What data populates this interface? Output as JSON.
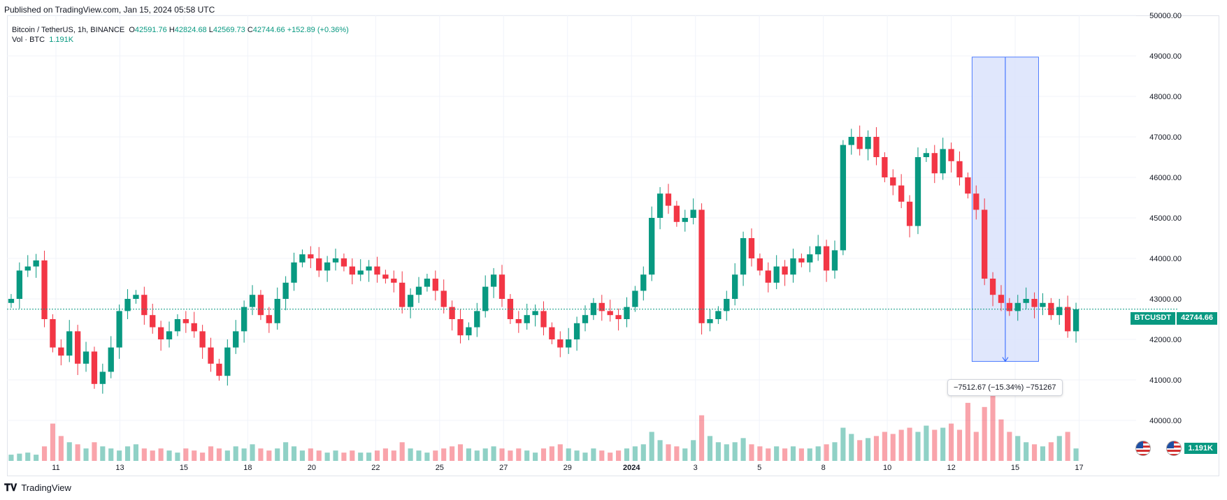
{
  "header": {
    "published": "Published on TradingView.com, Jan 15, 2024 05:58 UTC"
  },
  "legend": {
    "symbol": "Bitcoin / TetherUS, 1h, BINANCE",
    "open_label": "O",
    "open": "42591.76",
    "high_label": "H",
    "high": "42824.68",
    "low_label": "L",
    "low": "42569.73",
    "close_label": "C",
    "close": "42744.66",
    "change": "+152.89 (+0.36%)"
  },
  "volume_legend": {
    "label": "Vol · BTC",
    "value": "1.191K"
  },
  "price_tag": {
    "symbol": "BTCUSDT",
    "price": "42744.66"
  },
  "volume_tag": "1.191K",
  "measure": {
    "text": "−7512.67 (−15.34%) −751267"
  },
  "footer": {
    "brand": "TradingView"
  },
  "colors": {
    "up": "#089981",
    "down": "#f23645",
    "measure_fill": "#dbe3fb",
    "measure_line": "#2962ff",
    "grid": "#f0f3fa"
  },
  "chart_data": {
    "type": "candlestick",
    "ylim": [
      39000,
      50000
    ],
    "y_ticks": [
      "40000.00",
      "41000.00",
      "42000.00",
      "43000.00",
      "44000.00",
      "45000.00",
      "46000.00",
      "47000.00",
      "48000.00",
      "49000.00",
      "50000.00"
    ],
    "x_ticks": [
      "11",
      "13",
      "15",
      "18",
      "20",
      "22",
      "25",
      "27",
      "29",
      "2024",
      "3",
      "5",
      "8",
      "10",
      "12",
      "15",
      "17"
    ],
    "last_price": 42744.66,
    "series": [
      {
        "name": "Bitcoin / TetherUS",
        "values": [
          43000,
          43700,
          43800,
          43950,
          42500,
          41800,
          41600,
          42200,
          41400,
          41700,
          40900,
          41200,
          41800,
          42700,
          43000,
          43100,
          42600,
          42300,
          42000,
          42200,
          42500,
          42400,
          42200,
          41800,
          41400,
          41100,
          41800,
          42200,
          42800,
          43100,
          42600,
          42400,
          43000,
          43400,
          43900,
          44100,
          44000,
          43700,
          43900,
          44000,
          43800,
          43600,
          43700,
          43800,
          43600,
          43500,
          43400,
          42800,
          43100,
          43300,
          43500,
          43200,
          42800,
          42500,
          42100,
          42300,
          42700,
          43300,
          43600,
          43000,
          42500,
          42400,
          42600,
          42700,
          42300,
          42000,
          41800,
          42000,
          42400,
          42600,
          42900,
          42700,
          42600,
          42500,
          42800,
          43200,
          43600,
          45000,
          45600,
          45300,
          44900,
          45000,
          45200,
          42400,
          42500,
          42700,
          43000,
          43600,
          44500,
          44000,
          43700,
          43400,
          43800,
          43600,
          44000,
          43900,
          44100,
          44300,
          43700,
          44200,
          46800,
          47000,
          46700,
          47000,
          46500,
          46000,
          45800,
          45400,
          44800,
          46500,
          46600,
          46100,
          46700,
          46400,
          46000,
          45600,
          45200,
          43500,
          43100,
          42900,
          42700,
          42900,
          43000,
          42800,
          42900,
          42600,
          42800,
          42200,
          42744.66
        ]
      }
    ],
    "volumes": [
      0.3,
      0.35,
      0.4,
      0.3,
      0.7,
      1.8,
      1.2,
      0.9,
      0.8,
      0.6,
      0.9,
      0.7,
      0.6,
      0.5,
      0.7,
      0.8,
      0.6,
      0.5,
      0.6,
      0.5,
      0.4,
      0.6,
      0.5,
      0.4,
      0.7,
      0.6,
      0.5,
      0.7,
      0.6,
      0.8,
      0.6,
      0.5,
      0.6,
      0.9,
      0.7,
      0.5,
      0.6,
      0.5,
      0.4,
      0.5,
      0.4,
      0.5,
      0.4,
      0.4,
      0.5,
      0.6,
      0.5,
      0.9,
      0.6,
      0.5,
      0.4,
      0.5,
      0.6,
      0.7,
      0.8,
      0.6,
      0.5,
      0.6,
      0.7,
      0.6,
      0.5,
      0.6,
      0.5,
      0.4,
      0.6,
      0.7,
      0.8,
      0.6,
      0.5,
      0.4,
      0.6,
      0.5,
      0.4,
      0.5,
      0.6,
      0.7,
      0.8,
      1.4,
      1.0,
      0.8,
      0.7,
      0.6,
      1.0,
      2.2,
      1.2,
      0.9,
      0.8,
      0.9,
      1.1,
      0.8,
      0.7,
      0.6,
      0.7,
      0.6,
      0.7,
      0.6,
      0.6,
      0.7,
      0.8,
      0.9,
      1.6,
      1.3,
      1.0,
      1.1,
      1.2,
      1.4,
      1.3,
      1.5,
      1.6,
      1.4,
      1.7,
      1.5,
      1.6,
      1.8,
      1.5,
      2.8,
      1.4,
      2.6,
      3.2,
      2.0,
      1.4,
      1.2,
      0.9,
      0.8,
      0.7,
      0.9,
      1.2,
      1.4,
      0.6
    ],
    "measure": {
      "from": 48969,
      "to": 41456,
      "change": "−7512.67 (−15.34%) −751267"
    }
  }
}
